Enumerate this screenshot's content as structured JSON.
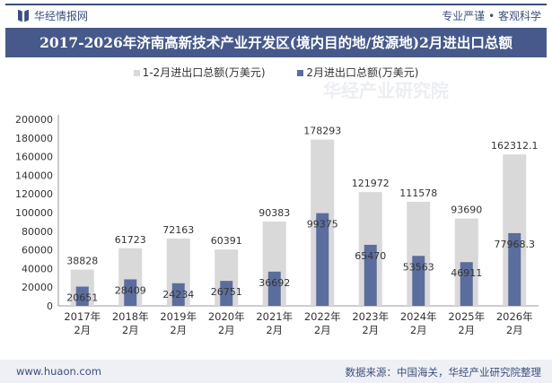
{
  "header": {
    "brand": "华经情报网",
    "slogan": "专业严谨 • 客观科学"
  },
  "footer": {
    "website": "www.huaon.com",
    "source": "数据来源：中国海关，华经产业研究院整理"
  },
  "watermark": "华经产业研究院",
  "chart_data": {
    "type": "bar",
    "title": "2017-2026年济南高新技术产业开发区(境内目的地/货源地)2月进出口总额",
    "categories": [
      "2017年\n2月",
      "2018年\n2月",
      "2019年\n2月",
      "2020年\n2月",
      "2021年\n2月",
      "2022年\n2月",
      "2023年\n2月",
      "2024年\n2月",
      "2025年\n2月",
      "2026年\n2月"
    ],
    "series": [
      {
        "name": "1-2月进出口总额(万美元)",
        "color": "#d9d9d9",
        "values": [
          38828,
          61723,
          72163,
          60391,
          90383,
          178293,
          121972,
          111578,
          93690,
          162312.1
        ]
      },
      {
        "name": "2月进出口总额(万美元)",
        "color": "#5a6d9c",
        "values": [
          20651,
          28409,
          24234,
          26751,
          36692,
          99375,
          65470,
          53563,
          46911,
          77968.3
        ]
      }
    ],
    "ylim": [
      0,
      200000
    ],
    "yticks": [
      0,
      20000,
      40000,
      60000,
      80000,
      100000,
      120000,
      140000,
      160000,
      180000,
      200000
    ],
    "legend": "top",
    "grid": false
  }
}
